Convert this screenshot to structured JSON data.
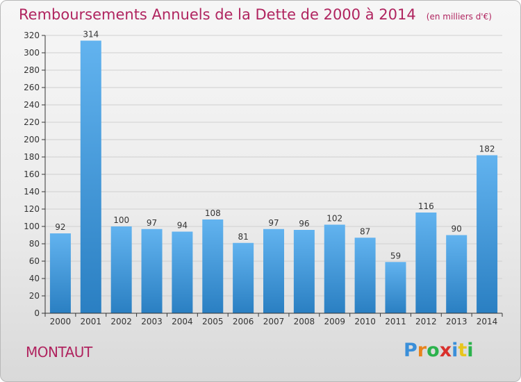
{
  "title": {
    "main": "Remboursements Annuels de la Dette de 2000 à 2014",
    "unit": "(en milliers d'€)"
  },
  "location": "MONTAUT",
  "logo": {
    "text": "Proxiti",
    "letter_colors": [
      "#3a8fd9",
      "#e8831c",
      "#2bb24c",
      "#d9302c",
      "#3a8fd9",
      "#e8c51c",
      "#2bb24c"
    ]
  },
  "colors": {
    "title": "#b0245f",
    "bar_top": "#62b3ef",
    "bar_bottom": "#2a7fc2",
    "grid": "#cfcfcf",
    "axis": "#333333"
  },
  "chart_data": {
    "type": "bar",
    "categories": [
      "2000",
      "2001",
      "2002",
      "2003",
      "2004",
      "2005",
      "2006",
      "2007",
      "2008",
      "2009",
      "2010",
      "2011",
      "2012",
      "2013",
      "2014"
    ],
    "values": [
      92,
      314,
      100,
      97,
      94,
      108,
      81,
      97,
      96,
      102,
      87,
      59,
      116,
      90,
      182
    ],
    "ylim": [
      0,
      320
    ],
    "yticks": [
      0,
      20,
      40,
      60,
      80,
      100,
      120,
      140,
      160,
      180,
      200,
      220,
      240,
      260,
      280,
      300,
      320
    ],
    "grid": true,
    "data_labels": true
  }
}
